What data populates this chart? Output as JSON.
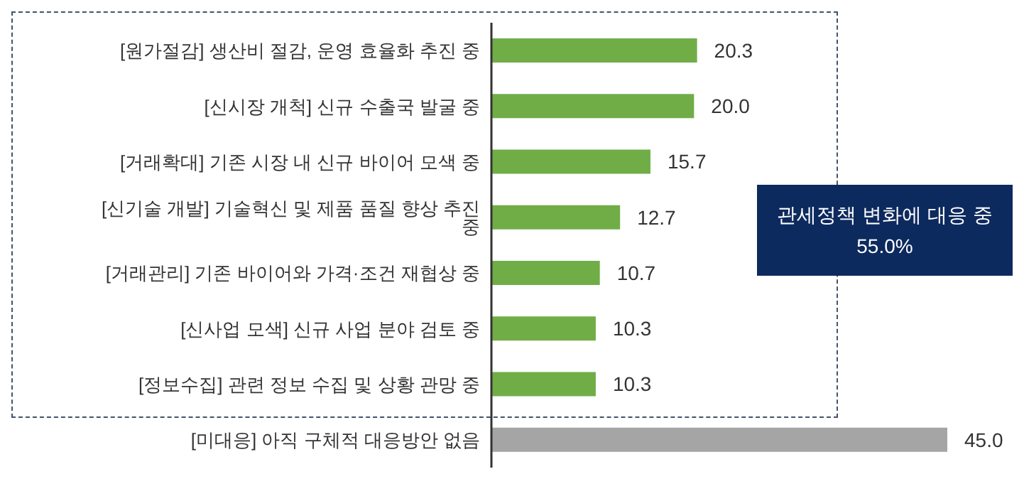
{
  "chart_data": {
    "type": "bar",
    "orientation": "horizontal",
    "categories": [
      "[원가절감] 생산비 절감, 운영 효율화 추진 중",
      "[신시장 개척] 신규 수출국 발굴 중",
      "[거래확대] 기존 시장 내 신규 바이어 모색 중",
      "[신기술 개발] 기술혁신 및 제품 품질 향상 추진 중",
      "[거래관리] 기존 바이어와 가격·조건 재협상 중",
      "[신사업 모색] 신규 사업 분야 검토 중",
      "[정보수집] 관련 정보 수집 및 상황 관망 중",
      "[미대응] 아직 구체적 대응방안 없음"
    ],
    "values": [
      20.3,
      20.0,
      15.7,
      12.7,
      10.7,
      10.3,
      10.3,
      45.0
    ],
    "value_labels": [
      "20.3",
      "20.0",
      "15.7",
      "12.7",
      "10.7",
      "10.3",
      "10.3",
      "45.0"
    ],
    "colors": [
      "#70ad47",
      "#70ad47",
      "#70ad47",
      "#70ad47",
      "#70ad47",
      "#70ad47",
      "#70ad47",
      "#a5a5a5"
    ],
    "annotations": [
      "관세정책 변화에 대응 중\n55.0%"
    ],
    "grid": false,
    "legend": false
  }
}
